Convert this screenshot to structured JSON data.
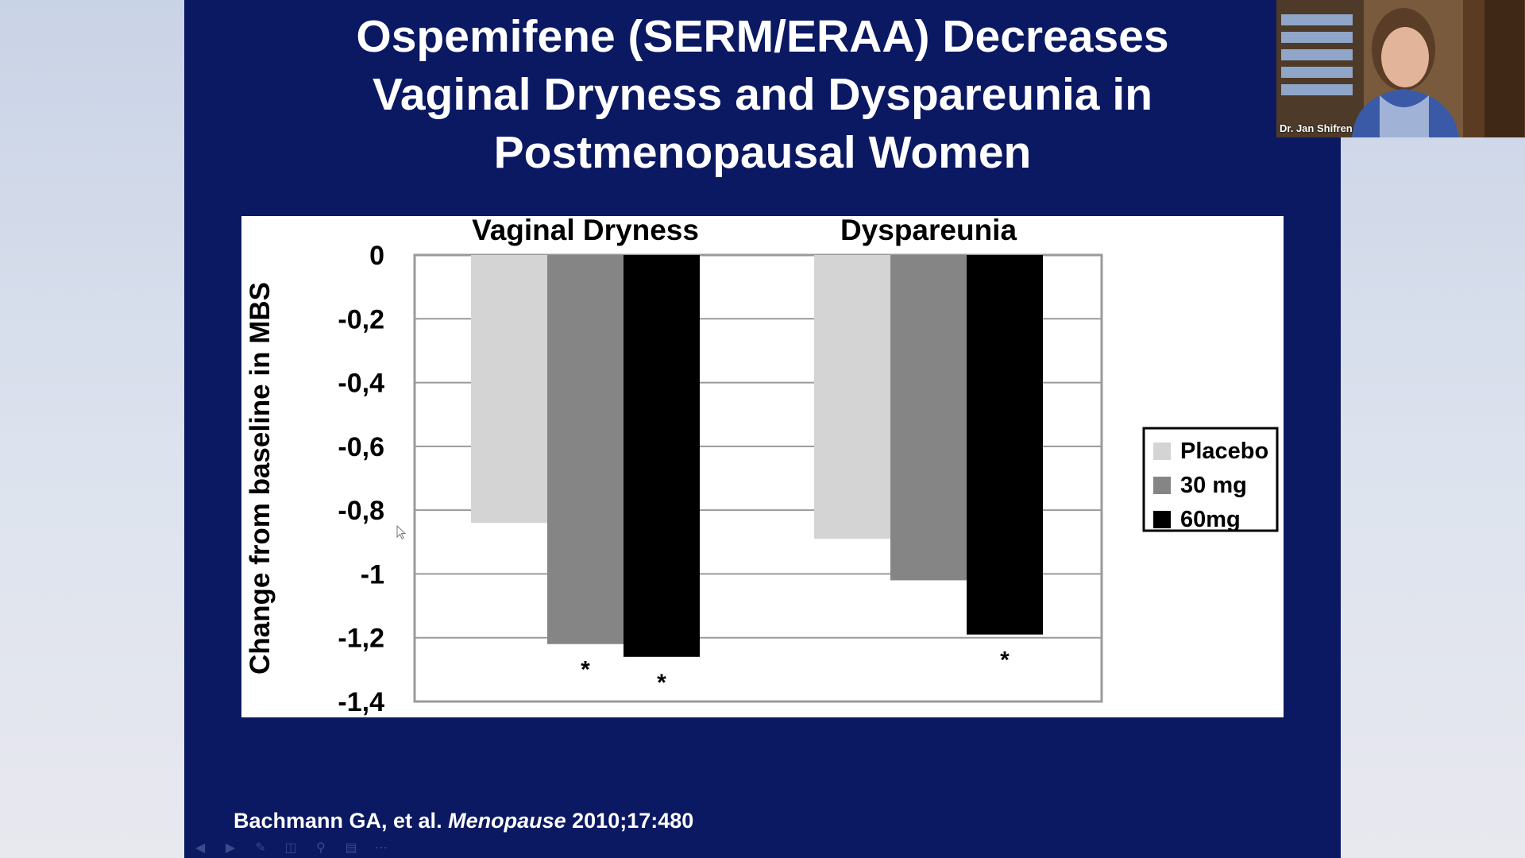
{
  "slide": {
    "title_lines": [
      "Ospemifene (SERM/ERAA) Decreases",
      "Vaginal Dryness and Dyspareunia in",
      "Postmenopausal Women"
    ],
    "citation": {
      "authors": "Bachmann GA, et al.",
      "journal": "Menopause",
      "details": "2010;17:480"
    },
    "background_color": "#0b1862"
  },
  "chart_data": {
    "type": "bar",
    "categories": [
      "Vaginal Dryness",
      "Dyspareunia"
    ],
    "series": [
      {
        "name": "Placebo",
        "color": "#d4d4d4",
        "values": [
          -0.84,
          -0.89
        ]
      },
      {
        "name": "30 mg",
        "color": "#858585",
        "values": [
          -1.22,
          -1.02
        ]
      },
      {
        "name": "60mg",
        "color": "#000000",
        "values": [
          -1.26,
          -1.19
        ]
      }
    ],
    "significance": [
      {
        "category": 0,
        "series": 1,
        "label": "*"
      },
      {
        "category": 0,
        "series": 2,
        "label": "*"
      },
      {
        "category": 1,
        "series": 2,
        "label": "*"
      }
    ],
    "ylabel": "Change from baseline in MBS",
    "ylim": [
      -1.4,
      0
    ],
    "yticks": [
      "0",
      "-0,2",
      "-0,4",
      "-0,6",
      "-0,8",
      "-1",
      "-1,2",
      "-1,4"
    ],
    "ytick_values": [
      0,
      -0.2,
      -0.4,
      -0.6,
      -0.8,
      -1,
      -1.2,
      -1.4
    ],
    "legend_position": "right",
    "grid": true
  },
  "webcam": {
    "presenter_name": "Dr. Jan Shifren"
  },
  "controls": {
    "icons": [
      "prev-icon",
      "next-icon",
      "pen-icon",
      "slides-icon",
      "zoom-icon",
      "subtitle-icon",
      "more-icon"
    ]
  }
}
